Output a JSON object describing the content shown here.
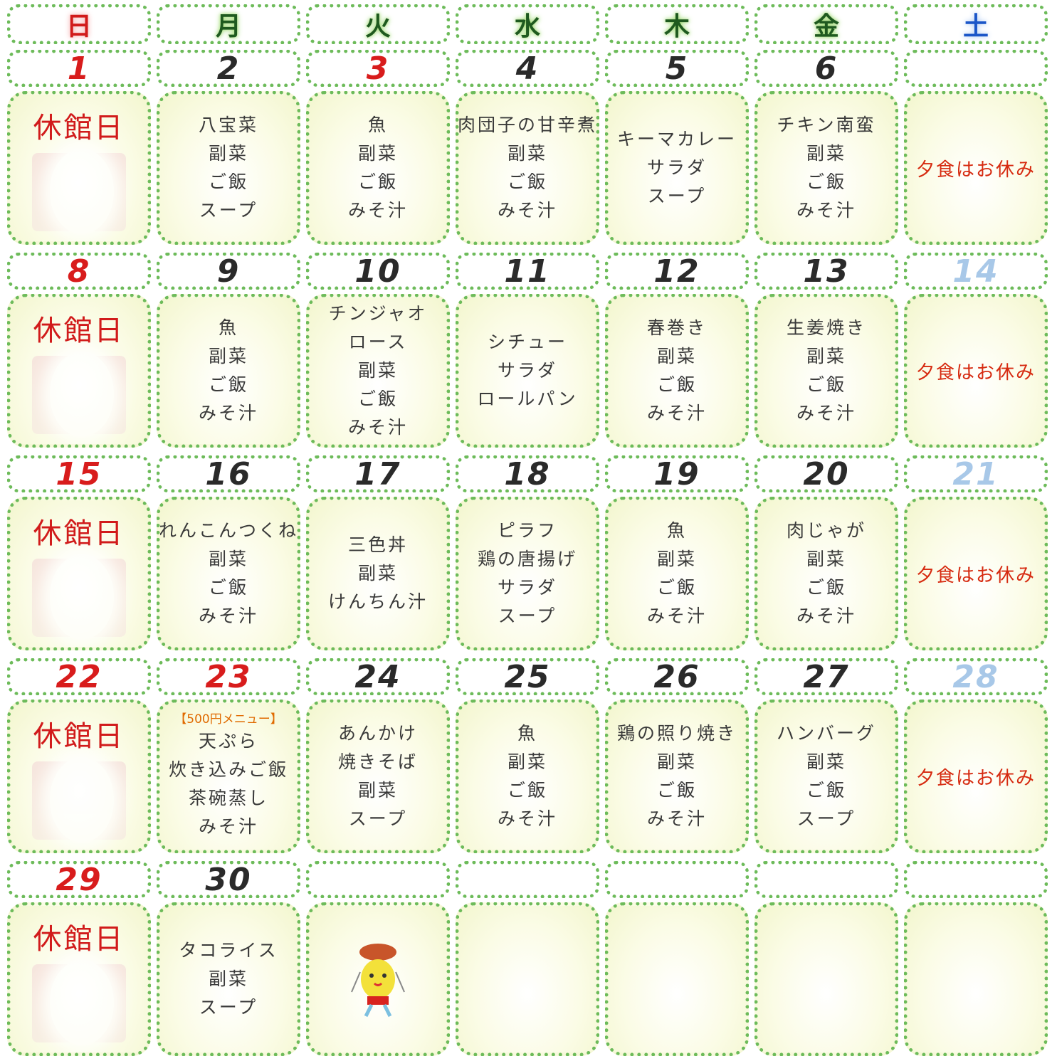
{
  "weekdays": [
    "日",
    "月",
    "火",
    "水",
    "木",
    "金",
    "土"
  ],
  "weeks": [
    [
      {
        "date": "1",
        "lines": [
          "休館日"
        ]
      },
      {
        "date": "2",
        "lines": [
          "八宝菜",
          "副菜",
          "ご飯",
          "スープ"
        ]
      },
      {
        "date": "3",
        "holiday": true,
        "lines": [
          "魚",
          "副菜",
          "ご飯",
          "みそ汁"
        ]
      },
      {
        "date": "4",
        "lines": [
          "肉団子の甘辛煮",
          "副菜",
          "ご飯",
          "みそ汁"
        ]
      },
      {
        "date": "5",
        "lines": [
          "キーマカレー",
          "サラダ",
          "スープ"
        ]
      },
      {
        "date": "6",
        "lines": [
          "チキン南蛮",
          "副菜",
          "ご飯",
          "みそ汁"
        ]
      },
      {
        "lines": [
          "夕食はお休み"
        ]
      }
    ],
    [
      {
        "date": "8",
        "lines": [
          "休館日"
        ]
      },
      {
        "date": "9",
        "lines": [
          "魚",
          "副菜",
          "ご飯",
          "みそ汁"
        ]
      },
      {
        "date": "10",
        "lines": [
          "チンジャオ",
          "ロース",
          "副菜",
          "ご飯",
          "みそ汁"
        ]
      },
      {
        "date": "11",
        "lines": [
          "シチュー",
          "サラダ",
          "ロールパン"
        ]
      },
      {
        "date": "12",
        "lines": [
          "春巻き",
          "副菜",
          "ご飯",
          "みそ汁"
        ]
      },
      {
        "date": "13",
        "lines": [
          "生姜焼き",
          "副菜",
          "ご飯",
          "みそ汁"
        ]
      },
      {
        "date": "14",
        "lines": [
          "夕食はお休み"
        ]
      }
    ],
    [
      {
        "date": "15",
        "lines": [
          "休館日"
        ]
      },
      {
        "date": "16",
        "lines": [
          "れんこんつくね",
          "副菜",
          "ご飯",
          "みそ汁"
        ]
      },
      {
        "date": "17",
        "lines": [
          "三色丼",
          "副菜",
          "けんちん汁"
        ]
      },
      {
        "date": "18",
        "lines": [
          "ピラフ",
          "鶏の唐揚げ",
          "サラダ",
          "スープ"
        ]
      },
      {
        "date": "19",
        "lines": [
          "魚",
          "副菜",
          "ご飯",
          "みそ汁"
        ]
      },
      {
        "date": "20",
        "lines": [
          "肉じゃが",
          "副菜",
          "ご飯",
          "みそ汁"
        ]
      },
      {
        "date": "21",
        "lines": [
          "夕食はお休み"
        ]
      }
    ],
    [
      {
        "date": "22",
        "lines": [
          "休館日"
        ]
      },
      {
        "date": "23",
        "holiday": true,
        "tag": "【500円メニュー】",
        "lines": [
          "天ぷら",
          "炊き込みご飯",
          "茶碗蒸し",
          "みそ汁"
        ]
      },
      {
        "date": "24",
        "lines": [
          "あんかけ",
          "焼きそば",
          "副菜",
          "スープ"
        ]
      },
      {
        "date": "25",
        "lines": [
          "魚",
          "副菜",
          "ご飯",
          "みそ汁"
        ]
      },
      {
        "date": "26",
        "lines": [
          "鶏の照り焼き",
          "副菜",
          "ご飯",
          "みそ汁"
        ]
      },
      {
        "date": "27",
        "lines": [
          "ハンバーグ",
          "副菜",
          "ご飯",
          "スープ"
        ]
      },
      {
        "date": "28",
        "lines": [
          "夕食はお休み"
        ]
      }
    ],
    [
      {
        "date": "29",
        "lines": [
          "休館日"
        ]
      },
      {
        "date": "30",
        "lines": [
          "タコライス",
          "副菜",
          "スープ"
        ]
      },
      null,
      null,
      null,
      null,
      null
    ]
  ]
}
